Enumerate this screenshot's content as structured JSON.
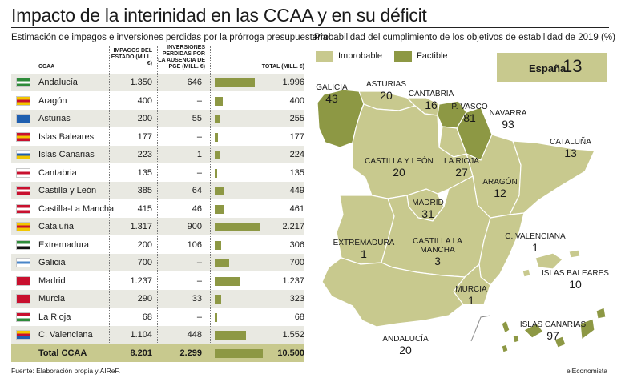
{
  "title": "Impacto de la interinidad en las CCAA y en su déficit",
  "subtitle_table": "Estimación de impagos e inversiones perdidas por la prórroga presupuestaria",
  "subtitle_map": "Probabilidad del cumplimiento de los objetivos de estabilidad de 2019 (%)",
  "table": {
    "headers": {
      "ccaa": "CCAA",
      "impagos": "IMPAGOS DEL ESTADO (MILL. €)",
      "inversiones": "INVERSIONES PERDIDAS POR LA AUSENCIA DE PGE (MILL. €)",
      "total": "TOTAL (MILL. €)"
    },
    "rows": [
      {
        "name": "Andalucía",
        "impagos": "1.350",
        "inversiones": "646",
        "total": "1.996"
      },
      {
        "name": "Aragón",
        "impagos": "400",
        "inversiones": "–",
        "total": "400"
      },
      {
        "name": "Asturias",
        "impagos": "200",
        "inversiones": "55",
        "total": "255"
      },
      {
        "name": "Islas Baleares",
        "impagos": "177",
        "inversiones": "–",
        "total": "177"
      },
      {
        "name": "Islas Canarias",
        "impagos": "223",
        "inversiones": "1",
        "total": "224"
      },
      {
        "name": "Cantabria",
        "impagos": "135",
        "inversiones": "–",
        "total": "135"
      },
      {
        "name": "Castilla y León",
        "impagos": "385",
        "inversiones": "64",
        "total": "449"
      },
      {
        "name": "Castilla-La Mancha",
        "impagos": "415",
        "inversiones": "46",
        "total": "461"
      },
      {
        "name": "Cataluña",
        "impagos": "1.317",
        "inversiones": "900",
        "total": "2.217"
      },
      {
        "name": "Extremadura",
        "impagos": "200",
        "inversiones": "106",
        "total": "306"
      },
      {
        "name": "Galicia",
        "impagos": "700",
        "inversiones": "–",
        "total": "700"
      },
      {
        "name": "Madrid",
        "impagos": "1.237",
        "inversiones": "–",
        "total": "1.237"
      },
      {
        "name": "Murcia",
        "impagos": "290",
        "inversiones": "33",
        "total": "323"
      },
      {
        "name": "La Rioja",
        "impagos": "68",
        "inversiones": "–",
        "total": "68"
      },
      {
        "name": "C. Valenciana",
        "impagos": "1.104",
        "inversiones": "448",
        "total": "1.552"
      }
    ],
    "total": {
      "name": "Total CCAA",
      "impagos": "8.201",
      "inversiones": "2.299",
      "total": "10.500"
    }
  },
  "legend": {
    "improbable": "Improbable",
    "factible": "Factible"
  },
  "espana": {
    "label": "España",
    "value": "13"
  },
  "colors": {
    "improbable": "#c8c98e",
    "factible": "#8d9844",
    "border": "#ffffff",
    "bar": "#8d9844"
  },
  "source": "Fuente: Elaboración propia y AIReF.",
  "brand": "elEconomista",
  "chart_data": [
    {
      "type": "bar",
      "categories": [
        "Andalucía",
        "Aragón",
        "Asturias",
        "Islas Baleares",
        "Islas Canarias",
        "Cantabria",
        "Castilla y León",
        "Castilla-La Mancha",
        "Cataluña",
        "Extremadura",
        "Galicia",
        "Madrid",
        "Murcia",
        "La Rioja",
        "C. Valenciana",
        "Total CCAA"
      ],
      "series": [
        {
          "name": "Impagos del Estado",
          "values": [
            1350,
            400,
            200,
            177,
            223,
            135,
            385,
            415,
            1317,
            200,
            700,
            1237,
            290,
            68,
            1104,
            8201
          ]
        },
        {
          "name": "Inversiones perdidas",
          "values": [
            646,
            0,
            55,
            0,
            1,
            0,
            64,
            46,
            900,
            106,
            0,
            0,
            33,
            0,
            448,
            2299
          ]
        },
        {
          "name": "Total",
          "values": [
            1996,
            400,
            255,
            177,
            224,
            135,
            449,
            461,
            2217,
            306,
            700,
            1237,
            323,
            68,
            1552,
            10500
          ]
        }
      ],
      "title": "Estimación de impagos e inversiones perdidas por la prórroga presupuestaria",
      "ylabel": "",
      "xlabel": ""
    },
    {
      "type": "heatmap",
      "title": "Probabilidad del cumplimiento de los objetivos de estabilidad de 2019 (%)",
      "regions": [
        {
          "name": "GALICIA",
          "value": 43,
          "category": "factible"
        },
        {
          "name": "ASTURIAS",
          "value": 20,
          "category": "improbable"
        },
        {
          "name": "CANTABRIA",
          "value": 16,
          "category": "improbable"
        },
        {
          "name": "P. VASCO",
          "value": 81,
          "category": "factible"
        },
        {
          "name": "NAVARRA",
          "value": 93,
          "category": "factible"
        },
        {
          "name": "CATALUÑA",
          "value": 13,
          "category": "improbable"
        },
        {
          "name": "CASTILLA Y LEÓN",
          "value": 20,
          "category": "improbable"
        },
        {
          "name": "LA RIOJA",
          "value": 27,
          "category": "improbable"
        },
        {
          "name": "ARAGÓN",
          "value": 12,
          "category": "improbable"
        },
        {
          "name": "MADRID",
          "value": 31,
          "category": "improbable"
        },
        {
          "name": "EXTREMADURA",
          "value": 1,
          "category": "improbable"
        },
        {
          "name": "CASTILLA LA MANCHA",
          "value": 3,
          "category": "improbable"
        },
        {
          "name": "C. VALENCIANA",
          "value": 1,
          "category": "improbable"
        },
        {
          "name": "ISLAS BALEARES",
          "value": 10,
          "category": "improbable"
        },
        {
          "name": "MURCIA",
          "value": 1,
          "category": "improbable"
        },
        {
          "name": "ANDALUCÍA",
          "value": 20,
          "category": "improbable"
        },
        {
          "name": "ISLAS CANARIAS",
          "value": 97,
          "category": "factible"
        }
      ]
    }
  ]
}
